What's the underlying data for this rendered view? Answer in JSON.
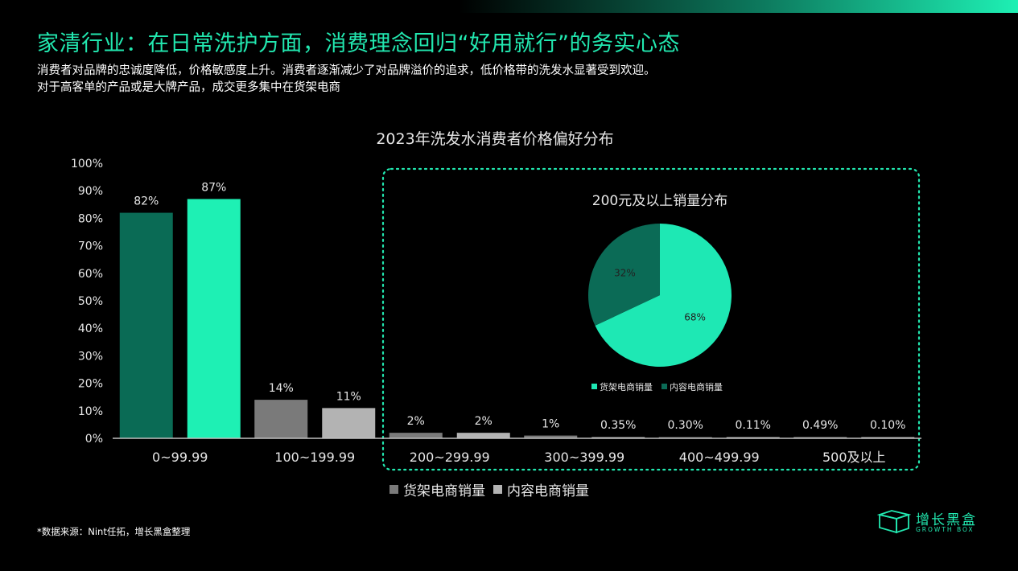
{
  "header": {
    "title": "家清行业：在日常洗护方面，消费理念回归“好用就行”的务实心态",
    "desc_line1": "消费者对品牌的忠诚度降低，价格敏感度上升。消费者逐渐减少了对品牌溢价的追求，低价格带的洗发水显著受到欢迎。",
    "desc_line2": "对于高客单的产品或是大牌产品，成交更多集中在货架电商"
  },
  "colors": {
    "accent": "#22e8b0",
    "shelf_dark_green": "#0a6b55",
    "content_bright_green": "#1ef0b4",
    "shelf_gray": "#7a7a7a",
    "content_light_gray": "#b3b3b3",
    "pie_shelf": "#0b6b56",
    "pie_content": "#1ee8b4",
    "dotted_box": "#22e8b0"
  },
  "chart_data": [
    {
      "type": "bar",
      "title": "2023年洗发水消费者价格偏好分布",
      "categories": [
        "0~99.99",
        "100~199.99",
        "200~299.99",
        "300~399.99",
        "400~499.99",
        "500及以上"
      ],
      "series": [
        {
          "name": "货架电商销量",
          "values": [
            82,
            14,
            2,
            1,
            0.3,
            0.49
          ]
        },
        {
          "name": "内容电商销量",
          "values": [
            87,
            11,
            2,
            0.35,
            0.11,
            0.1
          ]
        }
      ],
      "data_labels": [
        [
          "82%",
          "14%",
          "2%",
          "1%",
          "0.30%",
          "0.49%"
        ],
        [
          "87%",
          "11%",
          "2%",
          "0.35%",
          "0.11%",
          "0.10%"
        ]
      ],
      "ylim": [
        0,
        100
      ],
      "y_ticks": [
        "0%",
        "10%",
        "20%",
        "30%",
        "40%",
        "50%",
        "60%",
        "70%",
        "80%",
        "90%",
        "100%"
      ],
      "legend": [
        "货架电商销量",
        "内容电商销量"
      ],
      "legend_position": "bottom"
    },
    {
      "type": "pie",
      "title": "200元及以上销量分布",
      "labels": [
        "货架电商销量",
        "内容电商销量"
      ],
      "values": [
        68,
        32
      ],
      "data_labels": [
        "68%",
        "32%"
      ],
      "legend_position": "bottom"
    }
  ],
  "footer": {
    "source": "*数据来源：Nint任拓，增长黑盒整理",
    "logo_name": "增长黑盒",
    "logo_sub": "GROWTH BOX"
  }
}
